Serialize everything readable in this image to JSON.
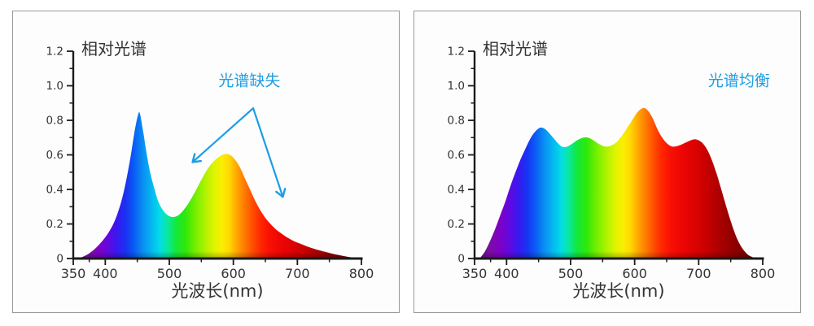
{
  "page": {
    "background": "#FFFFFF",
    "panel_background": "#FDFDFD",
    "panel_border_color": "#999999",
    "axis_color": "#1A1A1A",
    "label_color": "#333333",
    "accent_color": "#1E9DE4"
  },
  "spectrum_gradient": [
    {
      "nm": 350,
      "color": "#5C0A70"
    },
    {
      "nm": 372,
      "color": "#7A0FA0"
    },
    {
      "nm": 390,
      "color": "#7E00C8"
    },
    {
      "nm": 405,
      "color": "#5F0AE0"
    },
    {
      "nm": 418,
      "color": "#3A18F0"
    },
    {
      "nm": 432,
      "color": "#1833F2"
    },
    {
      "nm": 445,
      "color": "#0A5CF5"
    },
    {
      "nm": 458,
      "color": "#0A8CF2"
    },
    {
      "nm": 472,
      "color": "#06B6F2"
    },
    {
      "nm": 485,
      "color": "#02DCE8"
    },
    {
      "nm": 497,
      "color": "#0AE8A0"
    },
    {
      "nm": 510,
      "color": "#12E83C"
    },
    {
      "nm": 525,
      "color": "#2FE80A"
    },
    {
      "nm": 540,
      "color": "#72EE00"
    },
    {
      "nm": 555,
      "color": "#ABF200"
    },
    {
      "nm": 570,
      "color": "#DFF400"
    },
    {
      "nm": 582,
      "color": "#FAEE00"
    },
    {
      "nm": 593,
      "color": "#FFD900"
    },
    {
      "nm": 605,
      "color": "#FFA800"
    },
    {
      "nm": 617,
      "color": "#FF7C00"
    },
    {
      "nm": 630,
      "color": "#FF4E00"
    },
    {
      "nm": 643,
      "color": "#FF2600"
    },
    {
      "nm": 657,
      "color": "#F90F04"
    },
    {
      "nm": 675,
      "color": "#EC0505"
    },
    {
      "nm": 695,
      "color": "#DB0202"
    },
    {
      "nm": 715,
      "color": "#C30000"
    },
    {
      "nm": 738,
      "color": "#A40000"
    },
    {
      "nm": 762,
      "color": "#880000"
    },
    {
      "nm": 785,
      "color": "#6E0000"
    },
    {
      "nm": 800,
      "color": "#620000"
    }
  ],
  "chart_data": [
    {
      "type": "area",
      "title": "相对光谱",
      "xlabel": "光波长(nm)",
      "x_range": [
        350,
        800
      ],
      "y_range": [
        0,
        1.2
      ],
      "x_tick_values": [
        350,
        400,
        500,
        600,
        700,
        800
      ],
      "x_tick_labels": [
        "350",
        "400",
        "500",
        "600",
        "700",
        "800"
      ],
      "x_minor_ticks": [
        375,
        450,
        550,
        650,
        750
      ],
      "y_tick_values": [
        0,
        0.2,
        0.4,
        0.6,
        0.8,
        1.0,
        1.2
      ],
      "y_tick_labels": [
        "0",
        "0.2",
        "0.4",
        "0.6",
        "0.8",
        "1.0",
        "1.2"
      ],
      "y_minor_ticks": [
        0.1,
        0.3,
        0.5,
        0.7,
        0.9,
        1.1
      ],
      "annotation": {
        "text": "光谱缺失",
        "x": 625,
        "y": 1.0,
        "color": "#1E9DE4"
      },
      "arrows": [
        {
          "x1": 631,
          "y1": 0.87,
          "x2": 537,
          "y2": 0.56
        },
        {
          "x1": 631,
          "y1": 0.87,
          "x2": 677,
          "y2": 0.36
        }
      ],
      "points": [
        [
          357,
          0
        ],
        [
          365,
          0.01
        ],
        [
          375,
          0.03
        ],
        [
          385,
          0.06
        ],
        [
          395,
          0.1
        ],
        [
          405,
          0.15
        ],
        [
          415,
          0.22
        ],
        [
          425,
          0.33
        ],
        [
          432,
          0.44
        ],
        [
          440,
          0.6
        ],
        [
          446,
          0.74
        ],
        [
          451,
          0.83
        ],
        [
          454,
          0.84
        ],
        [
          459,
          0.74
        ],
        [
          464,
          0.62
        ],
        [
          470,
          0.5
        ],
        [
          477,
          0.4
        ],
        [
          484,
          0.32
        ],
        [
          492,
          0.27
        ],
        [
          500,
          0.245
        ],
        [
          507,
          0.24
        ],
        [
          514,
          0.25
        ],
        [
          521,
          0.275
        ],
        [
          530,
          0.32
        ],
        [
          540,
          0.385
        ],
        [
          550,
          0.455
        ],
        [
          560,
          0.52
        ],
        [
          570,
          0.565
        ],
        [
          580,
          0.595
        ],
        [
          588,
          0.605
        ],
        [
          595,
          0.6
        ],
        [
          602,
          0.575
        ],
        [
          610,
          0.53
        ],
        [
          618,
          0.465
        ],
        [
          626,
          0.4
        ],
        [
          634,
          0.335
        ],
        [
          642,
          0.28
        ],
        [
          650,
          0.235
        ],
        [
          658,
          0.2
        ],
        [
          666,
          0.17
        ],
        [
          675,
          0.145
        ],
        [
          685,
          0.12
        ],
        [
          695,
          0.1
        ],
        [
          705,
          0.085
        ],
        [
          715,
          0.07
        ],
        [
          725,
          0.058
        ],
        [
          735,
          0.047
        ],
        [
          745,
          0.037
        ],
        [
          755,
          0.028
        ],
        [
          765,
          0.02
        ],
        [
          775,
          0.012
        ],
        [
          785,
          0.006
        ],
        [
          793,
          0.002
        ],
        [
          798,
          0
        ]
      ]
    },
    {
      "type": "area",
      "title": "相对光谱",
      "xlabel": "光波长(nm)",
      "x_range": [
        350,
        800
      ],
      "y_range": [
        0,
        1.2
      ],
      "x_tick_values": [
        350,
        400,
        500,
        600,
        700,
        800
      ],
      "x_tick_labels": [
        "350",
        "400",
        "500",
        "600",
        "700",
        "800"
      ],
      "x_minor_ticks": [
        375,
        450,
        550,
        650,
        750
      ],
      "y_tick_values": [
        0,
        0.2,
        0.4,
        0.6,
        0.8,
        1.0,
        1.2
      ],
      "y_tick_labels": [
        "0",
        "0.2",
        "0.4",
        "0.6",
        "0.8",
        "1.0",
        "1.2"
      ],
      "y_minor_ticks": [
        0.1,
        0.3,
        0.5,
        0.7,
        0.9,
        1.1
      ],
      "annotation": {
        "text": "光谱均衡",
        "x": 763,
        "y": 1.0,
        "color": "#1E9DE4"
      },
      "arrows": [],
      "points": [
        [
          358,
          0
        ],
        [
          366,
          0.04
        ],
        [
          374,
          0.1
        ],
        [
          382,
          0.17
        ],
        [
          390,
          0.25
        ],
        [
          398,
          0.33
        ],
        [
          406,
          0.42
        ],
        [
          414,
          0.5
        ],
        [
          422,
          0.575
        ],
        [
          430,
          0.64
        ],
        [
          438,
          0.7
        ],
        [
          446,
          0.74
        ],
        [
          453,
          0.758
        ],
        [
          460,
          0.75
        ],
        [
          468,
          0.72
        ],
        [
          476,
          0.685
        ],
        [
          483,
          0.657
        ],
        [
          489,
          0.645
        ],
        [
          496,
          0.65
        ],
        [
          504,
          0.668
        ],
        [
          512,
          0.688
        ],
        [
          520,
          0.7
        ],
        [
          527,
          0.7
        ],
        [
          534,
          0.688
        ],
        [
          542,
          0.668
        ],
        [
          550,
          0.652
        ],
        [
          557,
          0.648
        ],
        [
          564,
          0.655
        ],
        [
          572,
          0.675
        ],
        [
          580,
          0.71
        ],
        [
          588,
          0.755
        ],
        [
          596,
          0.8
        ],
        [
          604,
          0.845
        ],
        [
          611,
          0.868
        ],
        [
          616,
          0.87
        ],
        [
          622,
          0.85
        ],
        [
          629,
          0.805
        ],
        [
          636,
          0.745
        ],
        [
          643,
          0.7
        ],
        [
          650,
          0.668
        ],
        [
          657,
          0.65
        ],
        [
          663,
          0.648
        ],
        [
          670,
          0.655
        ],
        [
          678,
          0.668
        ],
        [
          686,
          0.682
        ],
        [
          693,
          0.69
        ],
        [
          699,
          0.686
        ],
        [
          706,
          0.668
        ],
        [
          713,
          0.632
        ],
        [
          720,
          0.575
        ],
        [
          728,
          0.49
        ],
        [
          736,
          0.39
        ],
        [
          744,
          0.29
        ],
        [
          752,
          0.195
        ],
        [
          760,
          0.115
        ],
        [
          768,
          0.06
        ],
        [
          776,
          0.025
        ],
        [
          784,
          0.008
        ],
        [
          792,
          0
        ]
      ]
    }
  ]
}
